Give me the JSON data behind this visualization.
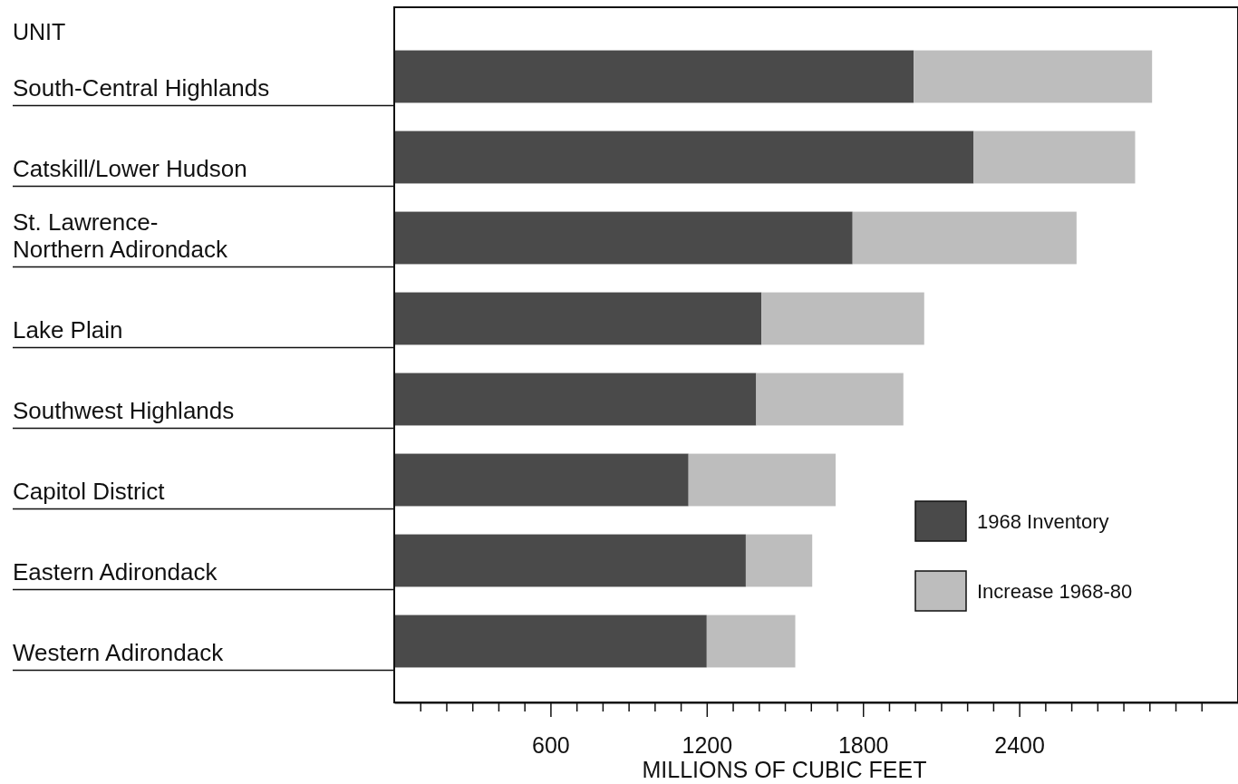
{
  "chart_data": {
    "type": "bar",
    "orientation": "horizontal",
    "stacked": true,
    "ylabel": "UNIT",
    "xlabel": "MILLIONS OF CUBIC FEET",
    "categories": [
      "South-Central Highlands",
      "Catskill/Lower Hudson",
      "St. Lawrence-Northern Adirondack",
      "Lake Plain",
      "Southwest Highlands",
      "Capitol District",
      "Eastern Adirondack",
      "Western Adirondack"
    ],
    "series": [
      {
        "name": "1968 Inventory",
        "color": "#4a4a4a",
        "values": [
          1995,
          2225,
          1760,
          1410,
          1390,
          1130,
          1350,
          1200
        ]
      },
      {
        "name": "Increase 1968-80",
        "color": "#bdbdbd",
        "values": [
          915,
          620,
          860,
          625,
          565,
          565,
          255,
          340
        ]
      }
    ],
    "xlim": [
      0,
      3240
    ],
    "xticks": [
      {
        "value": 100,
        "label": null
      },
      {
        "value": 200,
        "label": null
      },
      {
        "value": 300,
        "label": null
      },
      {
        "value": 400,
        "label": null
      },
      {
        "value": 500,
        "label": null
      },
      600,
      {
        "value": 700,
        "label": null
      },
      {
        "value": 800,
        "label": null
      },
      {
        "value": 900,
        "label": null
      },
      {
        "value": 1000,
        "label": null
      },
      {
        "value": 1100,
        "label": null
      },
      1200,
      {
        "value": 1300,
        "label": null
      },
      {
        "value": 1400,
        "label": null
      },
      {
        "value": 1500,
        "label": null
      },
      {
        "value": 1600,
        "label": null
      },
      {
        "value": 1700,
        "label": null
      },
      1800,
      {
        "value": 1900,
        "label": null
      },
      {
        "value": 2000,
        "label": null
      },
      {
        "value": 2100,
        "label": null
      },
      {
        "value": 2200,
        "label": null
      },
      {
        "value": 2300,
        "label": null
      },
      2400,
      {
        "value": 2500,
        "label": null
      },
      {
        "value": 2600,
        "label": null
      },
      {
        "value": 2700,
        "label": null
      },
      {
        "value": 2800,
        "label": null
      },
      {
        "value": 2900,
        "label": null
      },
      {
        "value": 3000,
        "label": null
      },
      {
        "value": 3100,
        "label": null
      }
    ],
    "grid": false,
    "legend": "right"
  }
}
